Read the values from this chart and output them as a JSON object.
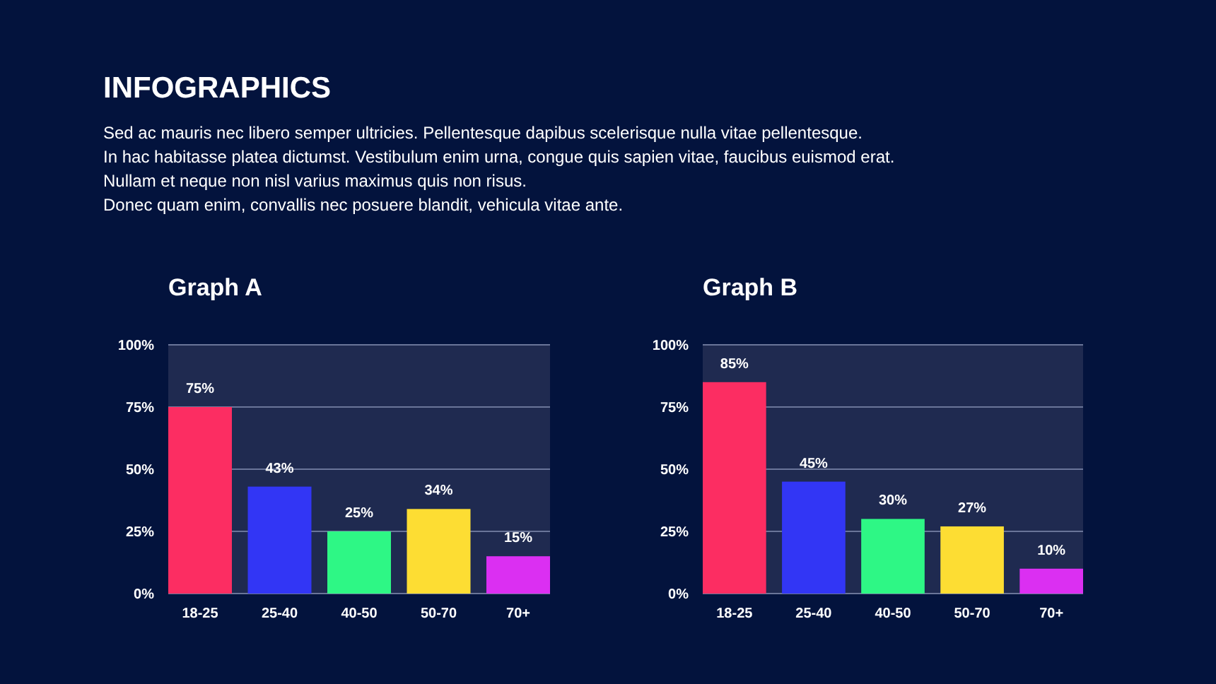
{
  "chart_data": [
    {
      "type": "other",
      "title": "INFOGRAPHICS",
      "annotations": [
        "Sed ac mauris nec libero semper ultricies. Pellentesque dapibus scelerisque nulla vitae pellentesque.",
        "In hac habitasse platea dictumst. Vestibulum enim urna, congue quis sapien vitae, faucibus euismod erat.",
        "Nullam et neque non nisl varius maximus quis non risus.",
        "Donec quam enim, convallis nec posuere blandit, vehicula vitae ante."
      ]
    },
    {
      "type": "bar",
      "title": "Graph A",
      "categories": [
        "18-25",
        "25-40",
        "40-50",
        "50-70",
        "70+"
      ],
      "values": [
        75,
        43,
        25,
        34,
        15
      ],
      "colors": [
        "#fc2d62",
        "#3236f5",
        "#2ef785",
        "#fddd33",
        "#db2ff2"
      ],
      "value_labels": [
        "75%",
        "43%",
        "25%",
        "34%",
        "15%"
      ],
      "ylim": [
        0,
        100
      ],
      "yticks": [
        {
          "value": 0,
          "label": "0%"
        },
        {
          "value": 25,
          "label": "25%"
        },
        {
          "value": 50,
          "label": "50%"
        },
        {
          "value": 75,
          "label": "75%"
        },
        {
          "value": 100,
          "label": "100%"
        }
      ],
      "grid": "y"
    },
    {
      "type": "bar",
      "title": "Graph B",
      "categories": [
        "18-25",
        "25-40",
        "40-50",
        "50-70",
        "70+"
      ],
      "values": [
        85,
        45,
        30,
        27,
        10
      ],
      "colors": [
        "#fc2d62",
        "#3236f5",
        "#2ef785",
        "#fddd33",
        "#db2ff2"
      ],
      "value_labels": [
        "85%",
        "45%",
        "30%",
        "27%",
        "10%"
      ],
      "ylim": [
        0,
        100
      ],
      "yticks": [
        {
          "value": 0,
          "label": "0%"
        },
        {
          "value": 25,
          "label": "25%"
        },
        {
          "value": 50,
          "label": "50%"
        },
        {
          "value": 75,
          "label": "75%"
        },
        {
          "value": 100,
          "label": "100%"
        }
      ],
      "grid": "y"
    }
  ]
}
